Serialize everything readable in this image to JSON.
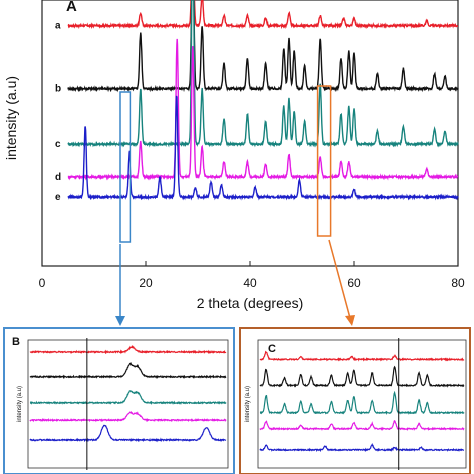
{
  "figure": {
    "panel_a_label": "A",
    "panel_b_label": "B",
    "panel_c_label": "C",
    "xlabel": "2 theta (degrees)",
    "ylabel": "intensity (a.u)",
    "inset_ylabel": "intensity (a.u)"
  },
  "colors": {
    "a": "#e8202a",
    "b": "#111111",
    "c": "#17837d",
    "d": "#e41be4",
    "e": "#1c1fc9",
    "box_blue": "#3a86c8",
    "box_orange": "#e8782a",
    "panel_b_border": "#4a8fcf",
    "panel_c_border": "#b5602a"
  },
  "chart_data": [
    {
      "type": "line",
      "panel": "A",
      "xlim": [
        0,
        80
      ],
      "x_ticks": [
        0,
        20,
        40,
        60,
        80
      ],
      "xlabel": "2 theta (degrees)",
      "ylabel": "intensity (a.u)",
      "grid": false,
      "series": [
        {
          "name": "a",
          "baseline": 0.93,
          "peaks": [
            [
              19.0,
              0.05
            ],
            [
              29.0,
              0.35
            ],
            [
              30.8,
              0.12
            ],
            [
              35.0,
              0.04
            ],
            [
              39.5,
              0.04
            ],
            [
              43.0,
              0.03
            ],
            [
              47.5,
              0.05
            ],
            [
              53.5,
              0.04
            ],
            [
              58.0,
              0.03
            ],
            [
              60.0,
              0.03
            ],
            [
              74.0,
              0.02
            ]
          ]
        },
        {
          "name": "b",
          "baseline": 0.68,
          "peaks": [
            [
              19.0,
              0.22
            ],
            [
              29.0,
              0.62
            ],
            [
              30.8,
              0.25
            ],
            [
              35.0,
              0.1
            ],
            [
              39.5,
              0.12
            ],
            [
              43.0,
              0.1
            ],
            [
              46.5,
              0.16
            ],
            [
              47.5,
              0.2
            ],
            [
              48.5,
              0.15
            ],
            [
              50.5,
              0.09
            ],
            [
              53.5,
              0.2
            ],
            [
              57.5,
              0.12
            ],
            [
              59.0,
              0.15
            ],
            [
              60.0,
              0.14
            ],
            [
              64.5,
              0.06
            ],
            [
              69.5,
              0.08
            ],
            [
              75.5,
              0.06
            ],
            [
              77.5,
              0.05
            ]
          ]
        },
        {
          "name": "c",
          "baseline": 0.46,
          "peaks": [
            [
              19.0,
              0.22
            ],
            [
              29.0,
              0.85
            ],
            [
              30.8,
              0.22
            ],
            [
              35.0,
              0.1
            ],
            [
              39.5,
              0.12
            ],
            [
              43.0,
              0.09
            ],
            [
              46.5,
              0.15
            ],
            [
              47.5,
              0.18
            ],
            [
              48.5,
              0.13
            ],
            [
              50.5,
              0.09
            ],
            [
              53.5,
              0.24
            ],
            [
              57.5,
              0.12
            ],
            [
              59.0,
              0.15
            ],
            [
              60.0,
              0.14
            ],
            [
              64.5,
              0.05
            ],
            [
              69.5,
              0.07
            ],
            [
              75.5,
              0.06
            ],
            [
              77.5,
              0.05
            ]
          ]
        },
        {
          "name": "d",
          "baseline": 0.33,
          "peaks": [
            [
              19.0,
              0.14
            ],
            [
              26.0,
              0.55
            ],
            [
              29.0,
              0.52
            ],
            [
              30.8,
              0.12
            ],
            [
              35.0,
              0.06
            ],
            [
              39.5,
              0.06
            ],
            [
              43.0,
              0.05
            ],
            [
              47.5,
              0.09
            ],
            [
              53.5,
              0.08
            ],
            [
              57.5,
              0.06
            ],
            [
              59.0,
              0.06
            ],
            [
              74.0,
              0.03
            ]
          ]
        },
        {
          "name": "e",
          "baseline": 0.25,
          "peaks": [
            [
              8.3,
              0.28
            ],
            [
              16.8,
              0.18
            ],
            [
              22.7,
              0.08
            ],
            [
              25.9,
              0.4
            ],
            [
              29.5,
              0.04
            ],
            [
              32.5,
              0.06
            ],
            [
              34.5,
              0.05
            ],
            [
              41.0,
              0.04
            ],
            [
              49.5,
              0.07
            ],
            [
              60.0,
              0.03
            ]
          ]
        }
      ],
      "highlight_ranges": [
        [
          15.0,
          17.0
        ],
        [
          53.0,
          55.5
        ]
      ]
    },
    {
      "type": "line",
      "panel": "B",
      "ylabel": "intensity (a.u)",
      "series": [
        {
          "name": "a",
          "baseline": 0.92,
          "peaks": [
            [
              0.52,
              0.04
            ]
          ]
        },
        {
          "name": "b",
          "baseline": 0.72,
          "peaks": [
            [
              0.51,
              0.1
            ],
            [
              0.55,
              0.08
            ]
          ]
        },
        {
          "name": "c",
          "baseline": 0.51,
          "peaks": [
            [
              0.51,
              0.09
            ],
            [
              0.55,
              0.08
            ]
          ]
        },
        {
          "name": "d",
          "baseline": 0.37,
          "peaks": [
            [
              0.51,
              0.06
            ],
            [
              0.55,
              0.05
            ]
          ]
        },
        {
          "name": "e",
          "baseline": 0.21,
          "peaks": [
            [
              0.38,
              0.12
            ],
            [
              0.9,
              0.1
            ]
          ]
        }
      ],
      "marker_x": 0.29
    },
    {
      "type": "line",
      "panel": "C",
      "ylabel": "intensity (a.u)",
      "series": [
        {
          "name": "a",
          "baseline": 0.86,
          "peaks": [
            [
              0.03,
              0.06
            ],
            [
              0.2,
              0.02
            ],
            [
              0.45,
              0.02
            ],
            [
              0.66,
              0.03
            ]
          ]
        },
        {
          "name": "b",
          "baseline": 0.65,
          "peaks": [
            [
              0.03,
              0.13
            ],
            [
              0.12,
              0.06
            ],
            [
              0.2,
              0.09
            ],
            [
              0.25,
              0.07
            ],
            [
              0.35,
              0.08
            ],
            [
              0.43,
              0.1
            ],
            [
              0.46,
              0.12
            ],
            [
              0.55,
              0.1
            ],
            [
              0.66,
              0.15
            ],
            [
              0.78,
              0.1
            ],
            [
              0.82,
              0.08
            ]
          ]
        },
        {
          "name": "c",
          "baseline": 0.43,
          "peaks": [
            [
              0.03,
              0.14
            ],
            [
              0.12,
              0.07
            ],
            [
              0.2,
              0.09
            ],
            [
              0.25,
              0.07
            ],
            [
              0.35,
              0.09
            ],
            [
              0.43,
              0.1
            ],
            [
              0.46,
              0.13
            ],
            [
              0.55,
              0.1
            ],
            [
              0.66,
              0.16
            ],
            [
              0.78,
              0.1
            ],
            [
              0.82,
              0.08
            ]
          ]
        },
        {
          "name": "d",
          "baseline": 0.3,
          "peaks": [
            [
              0.03,
              0.06
            ],
            [
              0.2,
              0.03
            ],
            [
              0.35,
              0.04
            ],
            [
              0.46,
              0.05
            ],
            [
              0.55,
              0.04
            ],
            [
              0.66,
              0.06
            ],
            [
              0.78,
              0.04
            ]
          ]
        },
        {
          "name": "e",
          "baseline": 0.13,
          "peaks": [
            [
              0.03,
              0.04
            ],
            [
              0.32,
              0.03
            ],
            [
              0.55,
              0.04
            ],
            [
              0.66,
              0.02
            ],
            [
              0.79,
              0.02
            ]
          ]
        }
      ],
      "marker_x": 0.68
    }
  ]
}
